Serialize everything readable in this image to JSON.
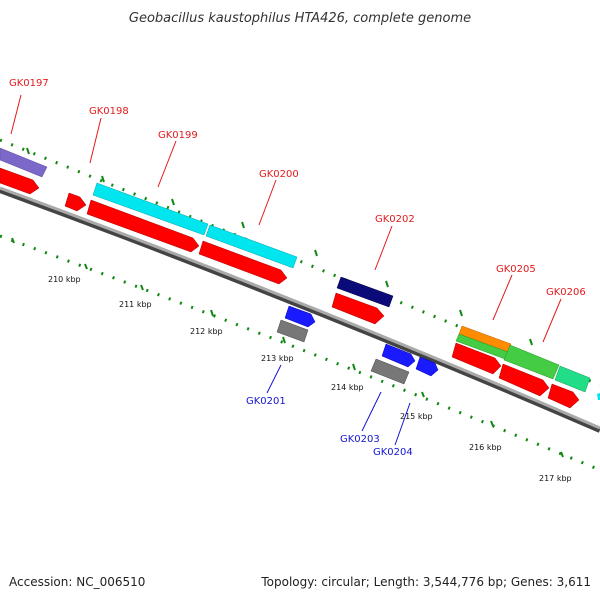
{
  "title": "Geobacillus kaustophilus HTA426, complete genome",
  "footer": {
    "accession": "Accession: NC_006510",
    "topology": "Topology: circular; Length: 3,544,776 bp; Genes: 3,611"
  },
  "colors": {
    "forward_label": "#e31a1c",
    "reverse_label": "#1515d0",
    "backbone": "#888888",
    "tick": "#118811"
  },
  "kbp_labels": [
    "210 kbp",
    "211 kbp",
    "212 kbp",
    "213 kbp",
    "214 kbp",
    "215 kbp",
    "216 kbp",
    "217 kbp"
  ],
  "genes_forward": [
    {
      "name": "GK0197",
      "color": "#7b68c8"
    },
    {
      "name": "GK0198",
      "color": "#ff0000"
    },
    {
      "name": "GK0199",
      "color": "#00e5ee"
    },
    {
      "name": "GK0200",
      "color": "#00e5ee"
    },
    {
      "name": "GK0202",
      "color": "#0a0a78"
    },
    {
      "name": "GK0205",
      "color": "#ff8c00"
    },
    {
      "name": "GK0206",
      "color": "#22dd88"
    }
  ],
  "genes_reverse": [
    {
      "name": "GK0201",
      "color": "#1a1aff"
    },
    {
      "name": "GK0203",
      "color": "#1a1aff"
    },
    {
      "name": "GK0204",
      "color": "#1a1aff"
    }
  ]
}
